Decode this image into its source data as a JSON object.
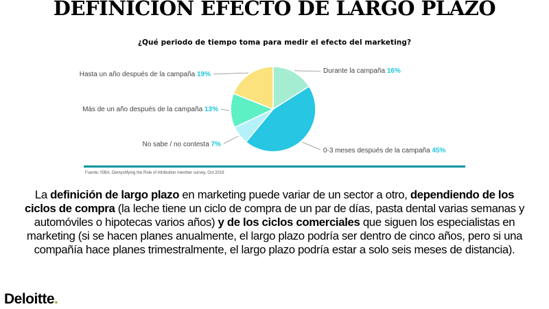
{
  "slide": {
    "title": "DEFINICIÓN EFECTO DE LARGO PLAZO",
    "source": "Fuente: ISBA, Demystifying the Role of Attribution member survey, Oct 2018",
    "body": {
      "p1": "La ",
      "b1": "definición de largo plazo",
      "p2": " en marketing puede variar de un sector a otro, ",
      "b2": "dependiendo de los ciclos de compra",
      "p3": " (la leche tiene un ciclo de compra de un par de días, pasta dental varias semanas y automóviles o hipotecas varios años) ",
      "b3": "y de los ciclos comerciales",
      "p4": " que siguen los especialistas en marketing (si se hacen planes anualmente, el largo plazo podría ser dentro de cinco años, pero si una compañía hace planes trimestralmente, el largo plazo podría estar a solo seis meses de distancia)."
    },
    "logo": {
      "name": "Deloitte",
      "dot": "."
    }
  },
  "chart_data": {
    "type": "pie",
    "title": "¿Qué periodo de tiempo toma para medir el efecto del marketing?",
    "slices": [
      {
        "label": "Durante la campaña",
        "pct": "16%",
        "value": 16,
        "color": "#a4edd2"
      },
      {
        "label": "0-3 meses después de la campaña",
        "pct": "45%",
        "value": 45,
        "color": "#27c6e3"
      },
      {
        "label": "No sabe / no contesta",
        "pct": "7%",
        "value": 7,
        "color": "#b5f1fb"
      },
      {
        "label": "Más de un año después de la campaña",
        "pct": "13%",
        "value": 13,
        "color": "#5ef0c5"
      },
      {
        "label": "Hasta un año después de la campaña",
        "pct": "19%",
        "value": 19,
        "color": "#fbe27c"
      }
    ],
    "legend": "none"
  }
}
